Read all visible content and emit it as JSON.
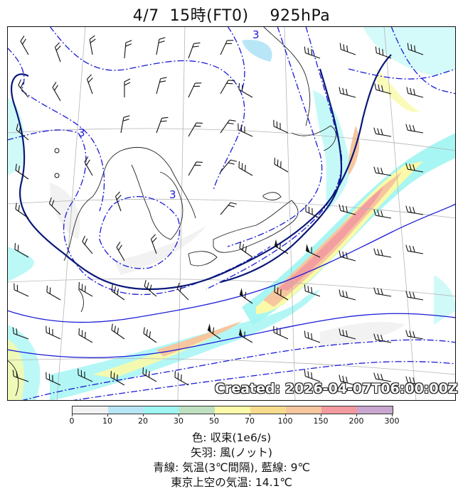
{
  "header": {
    "title": "4/7  15時(FT0)    925hPa"
  },
  "stamp": "Created: 2026-04-07T06:00:00Z",
  "colorbar": {
    "ticks": [
      "0",
      "10",
      "20",
      "30",
      "50",
      "70",
      "100",
      "150",
      "200",
      "300"
    ],
    "colors": [
      "#f2f2f2",
      "#b9e6f7",
      "#9ff5f2",
      "#bfe0c0",
      "#fafaa8",
      "#f6dc8c",
      "#f6c69e",
      "#f39aa0",
      "#c9a6cf"
    ]
  },
  "legend": {
    "line1": "色: 収束(1e6/s)",
    "line2": "矢羽: 風(ノット)",
    "line3": "青線: 気温(3℃間隔), 藍線: 9℃",
    "line4": "東京上空の気温: 14.1℃"
  },
  "map": {
    "contour_labels": [
      "3",
      "3",
      "3"
    ],
    "colors": {
      "temp": "#1a1ad6",
      "navy": "#0a1878",
      "coast": "#222222",
      "grid": "#b4b4b4"
    }
  }
}
